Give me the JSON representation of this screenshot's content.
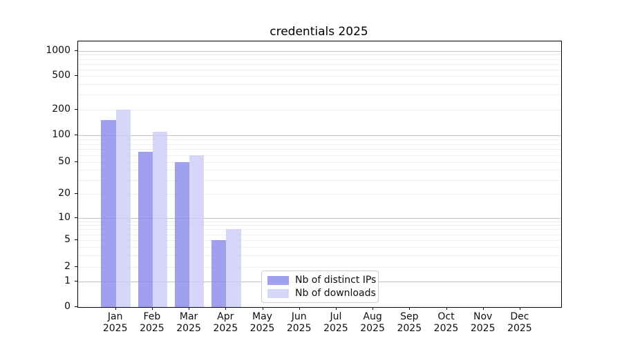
{
  "chart_data": {
    "type": "bar",
    "title": "credentials 2025",
    "xlabel": "",
    "ylabel": "",
    "year_label": "2025",
    "categories": [
      "Jan",
      "Feb",
      "Mar",
      "Apr",
      "May",
      "Jun",
      "Jul",
      "Aug",
      "Sep",
      "Oct",
      "Nov",
      "Dec"
    ],
    "series": [
      {
        "name": "Nb of distinct IPs",
        "color": "#8888ee",
        "fill_opacity": 0.8,
        "values": [
          150,
          65,
          50,
          5,
          0,
          0,
          0,
          0,
          0,
          0,
          0,
          0
        ]
      },
      {
        "name": "Nb of downloads",
        "color": "#ccccfa",
        "fill_opacity": 0.8,
        "values": [
          200,
          110,
          60,
          7,
          0,
          0,
          0,
          0,
          0,
          0,
          0,
          0
        ]
      }
    ],
    "yticks": [
      0,
      1,
      2,
      5,
      10,
      20,
      50,
      100,
      200,
      500,
      1000
    ],
    "yscale": "symlog",
    "ylim": [
      0,
      1300
    ],
    "grid": "horizontal-major-and-minor",
    "legend_position": "lower-center"
  },
  "colors": {
    "major_grid": "#c3c3c3",
    "minor_grid": "#ececec",
    "axis": "#000000",
    "text": "#0d0d0d"
  }
}
